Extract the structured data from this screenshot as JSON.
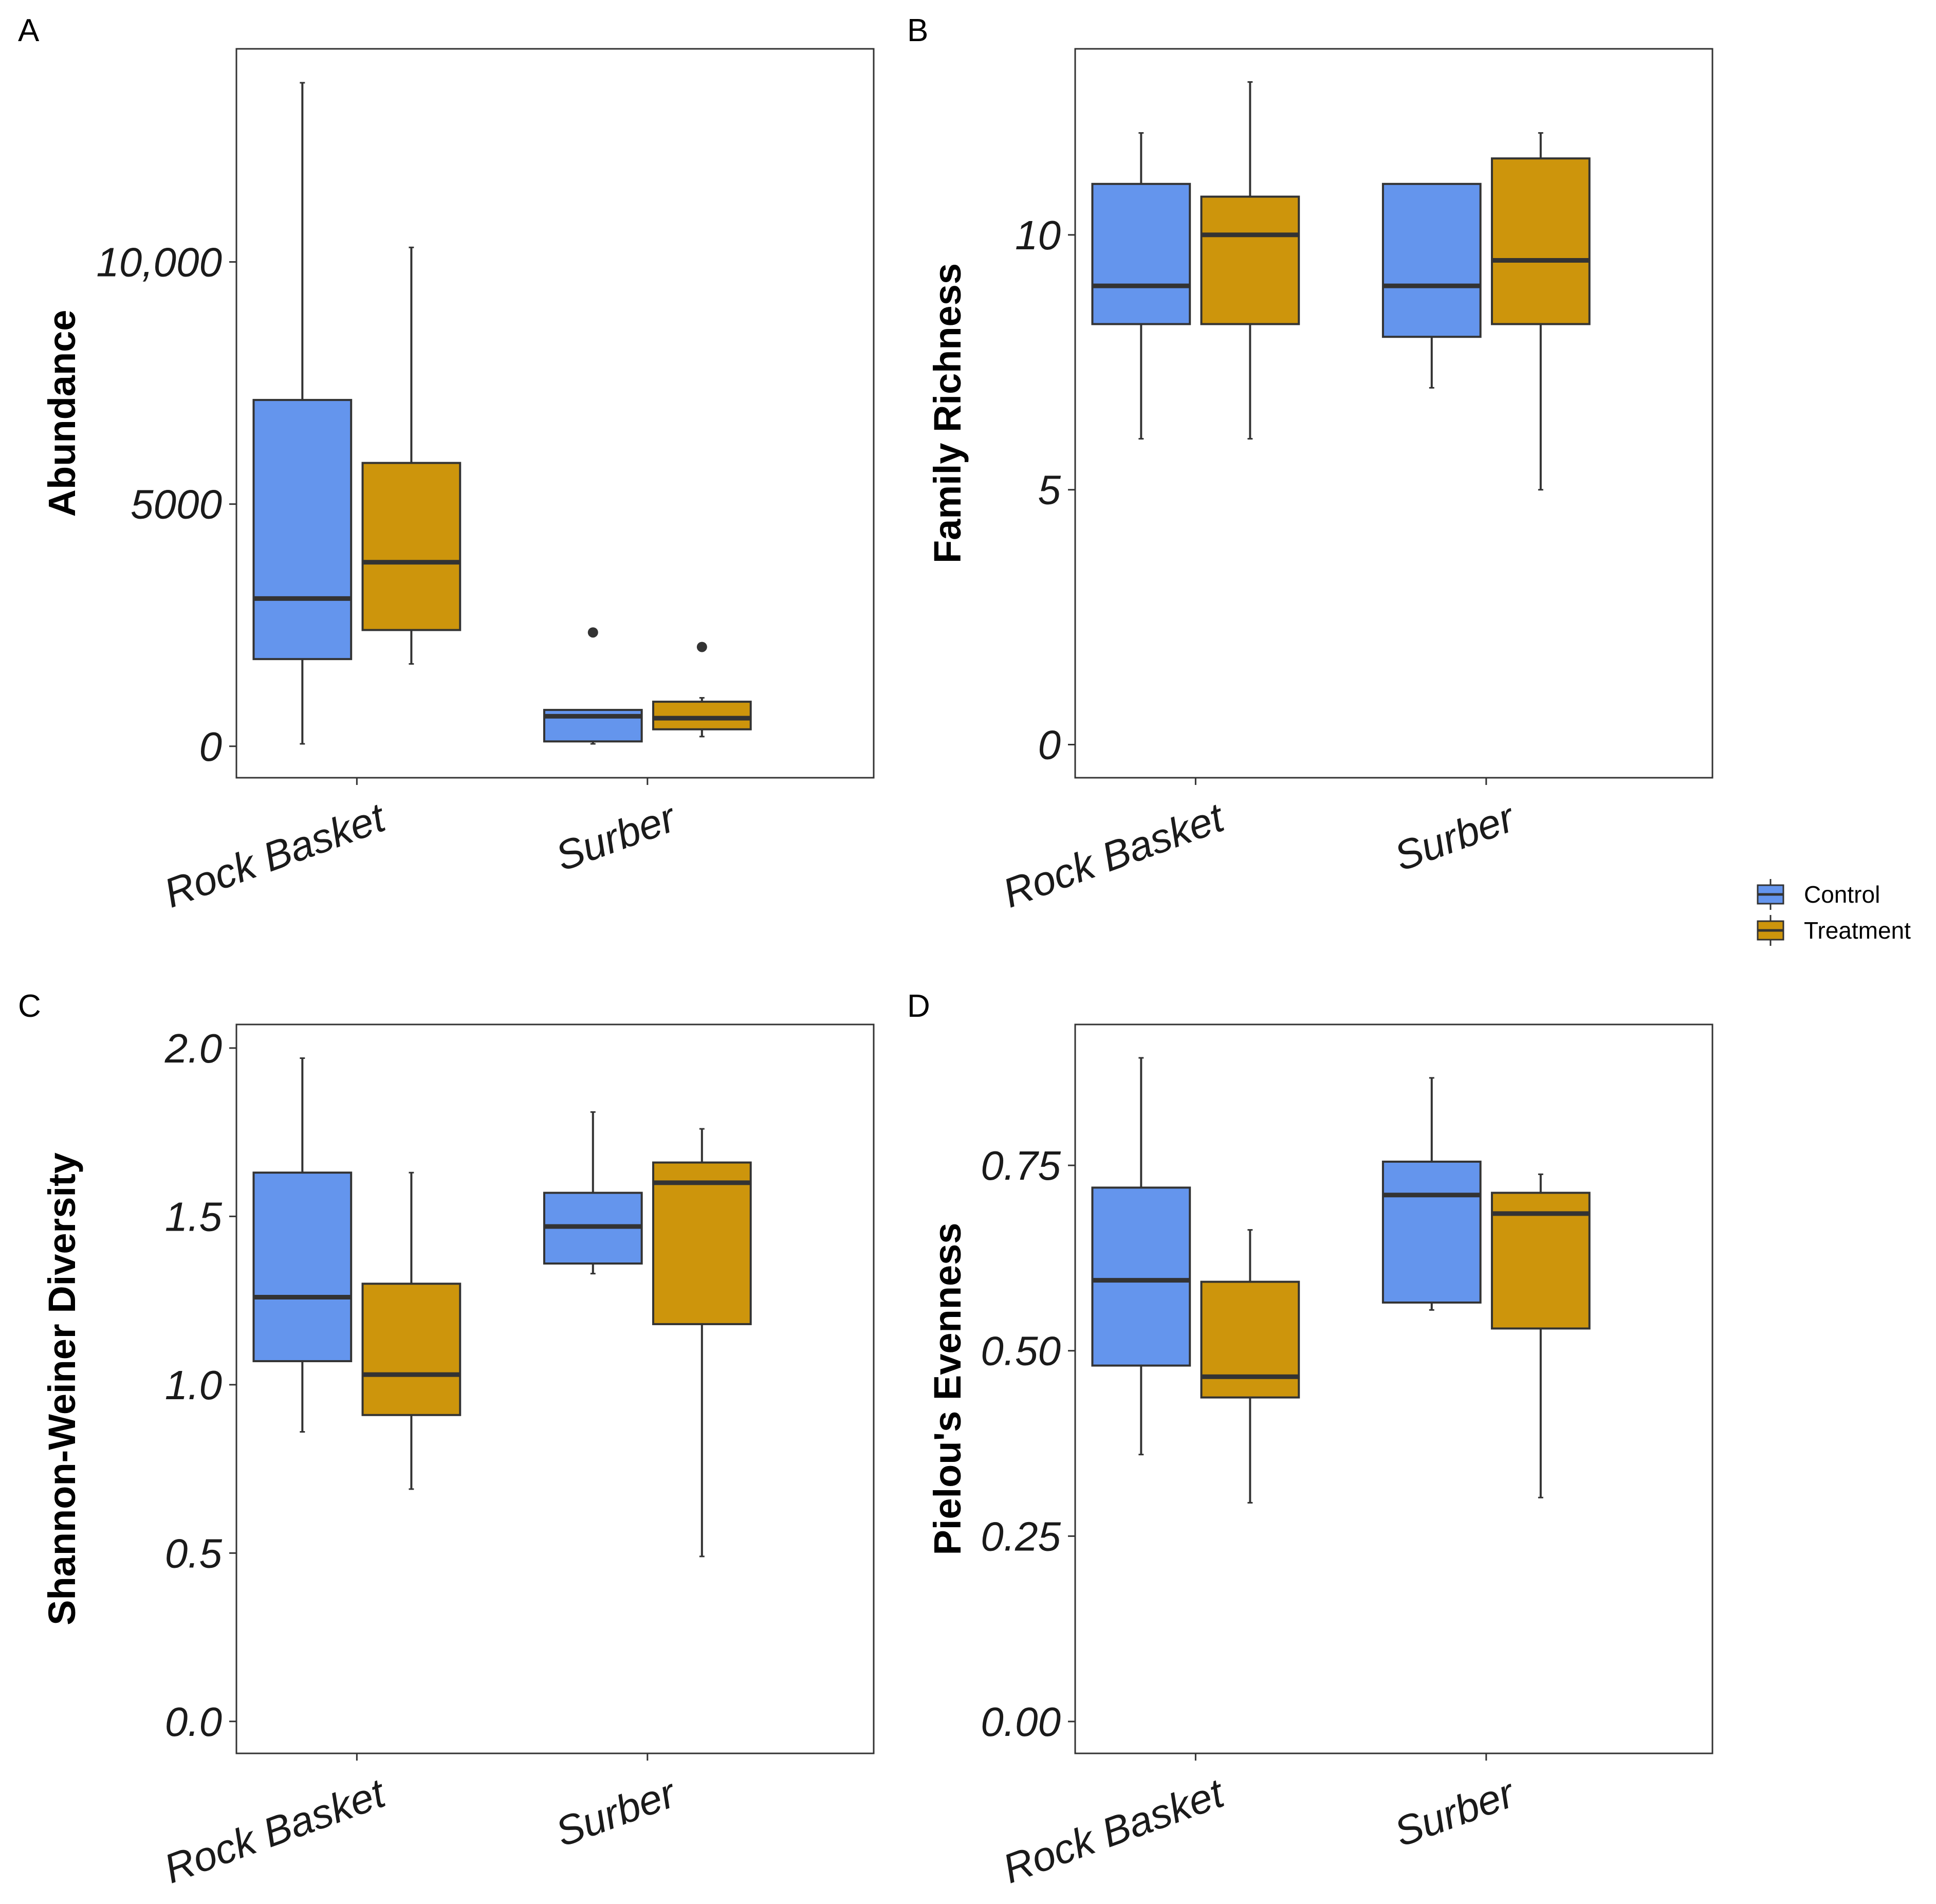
{
  "colors": {
    "control": "#6495ED",
    "treatment": "#CD950C",
    "stroke": "#333333",
    "frame": "#333333"
  },
  "legend": {
    "entries": [
      {
        "key": "control",
        "label": "Control"
      },
      {
        "key": "treatment",
        "label": "Treatment"
      }
    ]
  },
  "chart_data": [
    {
      "type": "box",
      "panel": "A",
      "ylabel": "Abundance",
      "ylim": [
        -650,
        14400
      ],
      "yticks": [
        {
          "v": 0,
          "label": "0"
        },
        {
          "v": 5000,
          "label": "5000"
        },
        {
          "v": 10000,
          "label": "10,000"
        }
      ],
      "categories": [
        "Rock Basket",
        "Surber"
      ],
      "series": [
        {
          "name": "Control",
          "boxes": [
            {
              "min": 50,
              "q1": 1800,
              "median": 3050,
              "q3": 7150,
              "max": 13700,
              "outliers": []
            },
            {
              "min": 50,
              "q1": 100,
              "median": 620,
              "q3": 750,
              "max": 750,
              "outliers": [
                2350
              ]
            }
          ]
        },
        {
          "name": "Treatment",
          "boxes": [
            {
              "min": 1700,
              "q1": 2400,
              "median": 3800,
              "q3": 5850,
              "max": 10300,
              "outliers": []
            },
            {
              "min": 200,
              "q1": 350,
              "median": 580,
              "q3": 920,
              "max": 1000,
              "outliers": [
                2050
              ]
            }
          ]
        }
      ]
    },
    {
      "type": "box",
      "panel": "B",
      "ylabel": "Family Richness",
      "ylim": [
        -0.65,
        13.65
      ],
      "yticks": [
        {
          "v": 0,
          "label": "0"
        },
        {
          "v": 5,
          "label": "5"
        },
        {
          "v": 10,
          "label": "10"
        }
      ],
      "categories": [
        "Rock Basket",
        "Surber"
      ],
      "series": [
        {
          "name": "Control",
          "boxes": [
            {
              "min": 6,
              "q1": 8.25,
              "median": 9,
              "q3": 11,
              "max": 12,
              "outliers": []
            },
            {
              "min": 7,
              "q1": 8,
              "median": 9,
              "q3": 11,
              "max": 11,
              "outliers": []
            }
          ]
        },
        {
          "name": "Treatment",
          "boxes": [
            {
              "min": 6,
              "q1": 8.25,
              "median": 10,
              "q3": 10.75,
              "max": 13,
              "outliers": []
            },
            {
              "min": 5,
              "q1": 8.25,
              "median": 9.5,
              "q3": 11.5,
              "max": 12,
              "outliers": []
            }
          ]
        }
      ]
    },
    {
      "type": "box",
      "panel": "C",
      "ylabel": "Shannon-Weiner Diversity",
      "ylim": [
        -0.095,
        2.07
      ],
      "yticks": [
        {
          "v": 0,
          "label": "0.0"
        },
        {
          "v": 0.5,
          "label": "0.5"
        },
        {
          "v": 1,
          "label": "1.0"
        },
        {
          "v": 1.5,
          "label": "1.5"
        },
        {
          "v": 2,
          "label": "2.0"
        }
      ],
      "categories": [
        "Rock Basket",
        "Surber"
      ],
      "series": [
        {
          "name": "Control",
          "boxes": [
            {
              "min": 0.86,
              "q1": 1.07,
              "median": 1.26,
              "q3": 1.63,
              "max": 1.97,
              "outliers": []
            },
            {
              "min": 1.33,
              "q1": 1.36,
              "median": 1.47,
              "q3": 1.57,
              "max": 1.81,
              "outliers": []
            }
          ]
        },
        {
          "name": "Treatment",
          "boxes": [
            {
              "min": 0.69,
              "q1": 0.91,
              "median": 1.03,
              "q3": 1.3,
              "max": 1.63,
              "outliers": []
            },
            {
              "min": 0.49,
              "q1": 1.18,
              "median": 1.6,
              "q3": 1.66,
              "max": 1.76,
              "outliers": []
            }
          ]
        }
      ]
    },
    {
      "type": "box",
      "panel": "D",
      "ylabel": "Pielou's Evenness",
      "ylim": [
        -0.043,
        0.94
      ],
      "yticks": [
        {
          "v": 0,
          "label": "0.00"
        },
        {
          "v": 0.25,
          "label": "0.25"
        },
        {
          "v": 0.5,
          "label": "0.50"
        },
        {
          "v": 0.75,
          "label": "0.75"
        }
      ],
      "categories": [
        "Rock Basket",
        "Surber"
      ],
      "series": [
        {
          "name": "Control",
          "boxes": [
            {
              "min": 0.36,
              "q1": 0.48,
              "median": 0.595,
              "q3": 0.72,
              "max": 0.895,
              "outliers": []
            },
            {
              "min": 0.555,
              "q1": 0.565,
              "median": 0.71,
              "q3": 0.755,
              "max": 0.868,
              "outliers": []
            }
          ]
        },
        {
          "name": "Treatment",
          "boxes": [
            {
              "min": 0.295,
              "q1": 0.437,
              "median": 0.465,
              "q3": 0.593,
              "max": 0.663,
              "outliers": []
            },
            {
              "min": 0.302,
              "q1": 0.53,
              "median": 0.685,
              "q3": 0.713,
              "max": 0.738,
              "outliers": []
            }
          ]
        }
      ]
    }
  ]
}
